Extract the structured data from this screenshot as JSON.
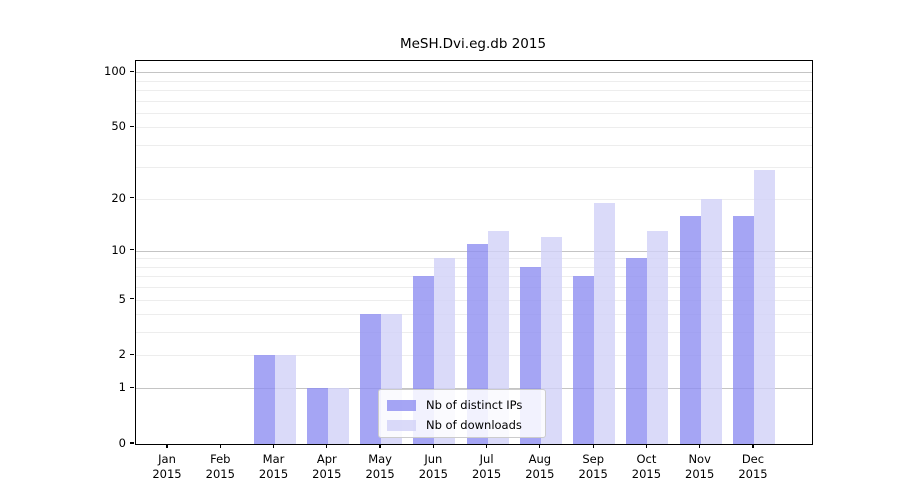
{
  "title": "MeSH.Dvi.eg.db 2015",
  "chart_data": {
    "type": "bar",
    "title": "MeSH.Dvi.eg.db 2015",
    "xlabel": "",
    "ylabel": "",
    "year_label": "2015",
    "categories": [
      "Jan",
      "Feb",
      "Mar",
      "Apr",
      "May",
      "Jun",
      "Jul",
      "Aug",
      "Sep",
      "Oct",
      "Nov",
      "Dec"
    ],
    "series": [
      {
        "name": "Nb of distinct IPs",
        "color": "rgba(143,143,241,0.8)",
        "values": [
          0,
          0,
          2,
          1,
          4,
          7,
          11,
          8,
          7,
          9,
          16,
          16
        ]
      },
      {
        "name": "Nb of downloads",
        "color": "rgba(209,209,248,0.8)",
        "values": [
          0,
          0,
          2,
          1,
          4,
          9,
          13,
          12,
          19,
          13,
          20,
          29
        ]
      }
    ],
    "scale": "log1p",
    "ylim": [
      0,
      115
    ],
    "y_tick_values": [
      0,
      1,
      2,
      5,
      10,
      20,
      50,
      100
    ],
    "y_tick_labels": [
      "0",
      "1",
      "2",
      "5",
      "10",
      "20",
      "50",
      "100"
    ],
    "y_major_gridlines": [
      1,
      10,
      100
    ],
    "y_minor_gridlines": [
      2,
      3,
      4,
      5,
      6,
      7,
      8,
      9,
      20,
      30,
      40,
      50,
      60,
      70,
      80,
      90
    ],
    "grid": true,
    "legend_position": "lower-center"
  }
}
